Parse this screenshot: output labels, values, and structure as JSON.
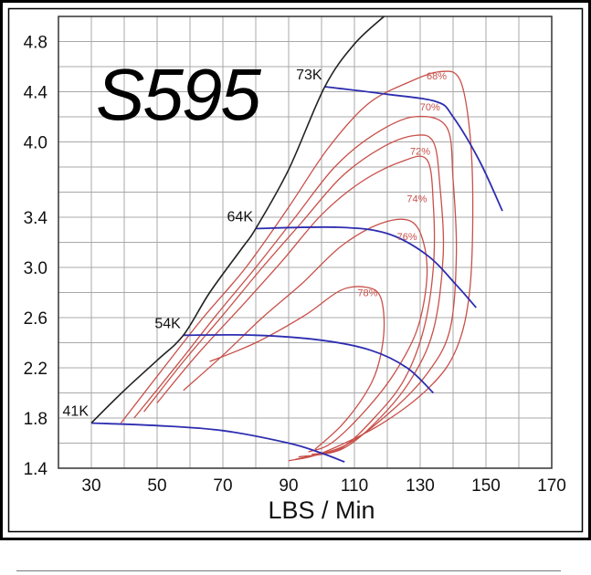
{
  "chart_data": {
    "type": "line",
    "title": "S595",
    "xlabel": "LBS / Min",
    "ylabel": "",
    "xlim": [
      20,
      170
    ],
    "ylim": [
      1.4,
      5.0
    ],
    "x_ticks": [
      30,
      50,
      70,
      90,
      110,
      130,
      150,
      170
    ],
    "y_ticks": [
      4.8,
      4.4,
      4.0,
      3.4,
      3.0,
      2.6,
      2.2,
      1.8,
      1.4
    ],
    "grid": true,
    "colors": {
      "surge": "#222222",
      "speed": "#2d2db0",
      "efficiency": "#c8504a",
      "grid": "#a8a8a8"
    },
    "surge_line": [
      [
        30,
        1.76
      ],
      [
        40,
        2.02
      ],
      [
        50,
        2.26
      ],
      [
        58,
        2.46
      ],
      [
        66,
        2.8
      ],
      [
        76,
        3.16
      ],
      [
        80,
        3.31
      ],
      [
        90,
        3.78
      ],
      [
        101,
        4.44
      ],
      [
        110,
        4.78
      ],
      [
        119,
        5.0
      ]
    ],
    "speed_lines": [
      {
        "label": "41K",
        "points": [
          [
            30,
            1.76
          ],
          [
            50,
            1.74
          ],
          [
            70,
            1.7
          ],
          [
            90,
            1.6
          ],
          [
            100,
            1.52
          ],
          [
            107,
            1.45
          ]
        ]
      },
      {
        "label": "54K",
        "points": [
          [
            58,
            2.46
          ],
          [
            80,
            2.46
          ],
          [
            100,
            2.42
          ],
          [
            115,
            2.34
          ],
          [
            126,
            2.2
          ],
          [
            134,
            2.0
          ]
        ]
      },
      {
        "label": "64K",
        "points": [
          [
            80,
            3.31
          ],
          [
            105,
            3.32
          ],
          [
            120,
            3.27
          ],
          [
            132,
            3.1
          ],
          [
            141,
            2.86
          ],
          [
            147,
            2.68
          ]
        ]
      },
      {
        "label": "73K",
        "points": [
          [
            101,
            4.44
          ],
          [
            120,
            4.38
          ],
          [
            135,
            4.32
          ],
          [
            140,
            4.2
          ],
          [
            148,
            3.85
          ],
          [
            155,
            3.45
          ]
        ]
      }
    ],
    "efficiency_islands": [
      {
        "label": "78%",
        "label_at": [
          114,
          2.77
        ],
        "points": [
          [
            66,
            2.25
          ],
          [
            80,
            2.4
          ],
          [
            95,
            2.62
          ],
          [
            106,
            2.82
          ],
          [
            114,
            2.84
          ],
          [
            118,
            2.76
          ],
          [
            119,
            2.5
          ],
          [
            117,
            2.2
          ],
          [
            113,
            1.98
          ],
          [
            106,
            1.74
          ],
          [
            98,
            1.55
          ]
        ]
      },
      {
        "label": "76%",
        "label_at": [
          126,
          3.22
        ],
        "points": [
          [
            58,
            2.02
          ],
          [
            70,
            2.3
          ],
          [
            82,
            2.6
          ],
          [
            94,
            2.87
          ],
          [
            106,
            3.17
          ],
          [
            118,
            3.35
          ],
          [
            127,
            3.37
          ],
          [
            131,
            3.2
          ],
          [
            132,
            2.9
          ],
          [
            129,
            2.5
          ],
          [
            122,
            2.15
          ],
          [
            113,
            1.85
          ],
          [
            103,
            1.6
          ],
          [
            96,
            1.53
          ]
        ]
      },
      {
        "label": "74%",
        "label_at": [
          129,
          3.52
        ],
        "points": [
          [
            50,
            1.92
          ],
          [
            62,
            2.3
          ],
          [
            76,
            2.7
          ],
          [
            88,
            3.05
          ],
          [
            100,
            3.42
          ],
          [
            112,
            3.68
          ],
          [
            124,
            3.84
          ],
          [
            132,
            3.86
          ],
          [
            134,
            3.5
          ],
          [
            134,
            3.0
          ],
          [
            131,
            2.5
          ],
          [
            125,
            2.1
          ],
          [
            116,
            1.8
          ],
          [
            106,
            1.56
          ],
          [
            97,
            1.51
          ]
        ]
      },
      {
        "label": "72%",
        "label_at": [
          130,
          3.9
        ],
        "points": [
          [
            46,
            1.85
          ],
          [
            58,
            2.25
          ],
          [
            70,
            2.62
          ],
          [
            82,
            3.0
          ],
          [
            94,
            3.36
          ],
          [
            106,
            3.72
          ],
          [
            118,
            3.95
          ],
          [
            128,
            4.05
          ],
          [
            134,
            4.0
          ],
          [
            136,
            3.65
          ],
          [
            137,
            3.1
          ],
          [
            134,
            2.5
          ],
          [
            127,
            2.1
          ],
          [
            117,
            1.78
          ],
          [
            106,
            1.55
          ],
          [
            93,
            1.49
          ]
        ]
      },
      {
        "label": "70%",
        "label_at": [
          133,
          4.25
        ],
        "points": [
          [
            43,
            1.8
          ],
          [
            56,
            2.22
          ],
          [
            68,
            2.62
          ],
          [
            80,
            3.0
          ],
          [
            92,
            3.4
          ],
          [
            104,
            3.8
          ],
          [
            116,
            4.06
          ],
          [
            128,
            4.2
          ],
          [
            138,
            4.12
          ],
          [
            140,
            3.7
          ],
          [
            141,
            3.1
          ],
          [
            139,
            2.5
          ],
          [
            132,
            2.15
          ],
          [
            121,
            1.85
          ],
          [
            107,
            1.58
          ],
          [
            92,
            1.47
          ]
        ]
      },
      {
        "label": "68%",
        "label_at": [
          135,
          4.5
        ],
        "points": [
          [
            39,
            1.76
          ],
          [
            52,
            2.2
          ],
          [
            64,
            2.6
          ],
          [
            77,
            3.0
          ],
          [
            90,
            3.48
          ],
          [
            102,
            3.95
          ],
          [
            114,
            4.3
          ],
          [
            126,
            4.47
          ],
          [
            136,
            4.56
          ],
          [
            142,
            4.5
          ],
          [
            145,
            4.1
          ],
          [
            146,
            3.5
          ],
          [
            145,
            2.8
          ],
          [
            141,
            2.35
          ],
          [
            133,
            2.05
          ],
          [
            118,
            1.75
          ],
          [
            100,
            1.52
          ],
          [
            90,
            1.46
          ]
        ]
      }
    ]
  }
}
